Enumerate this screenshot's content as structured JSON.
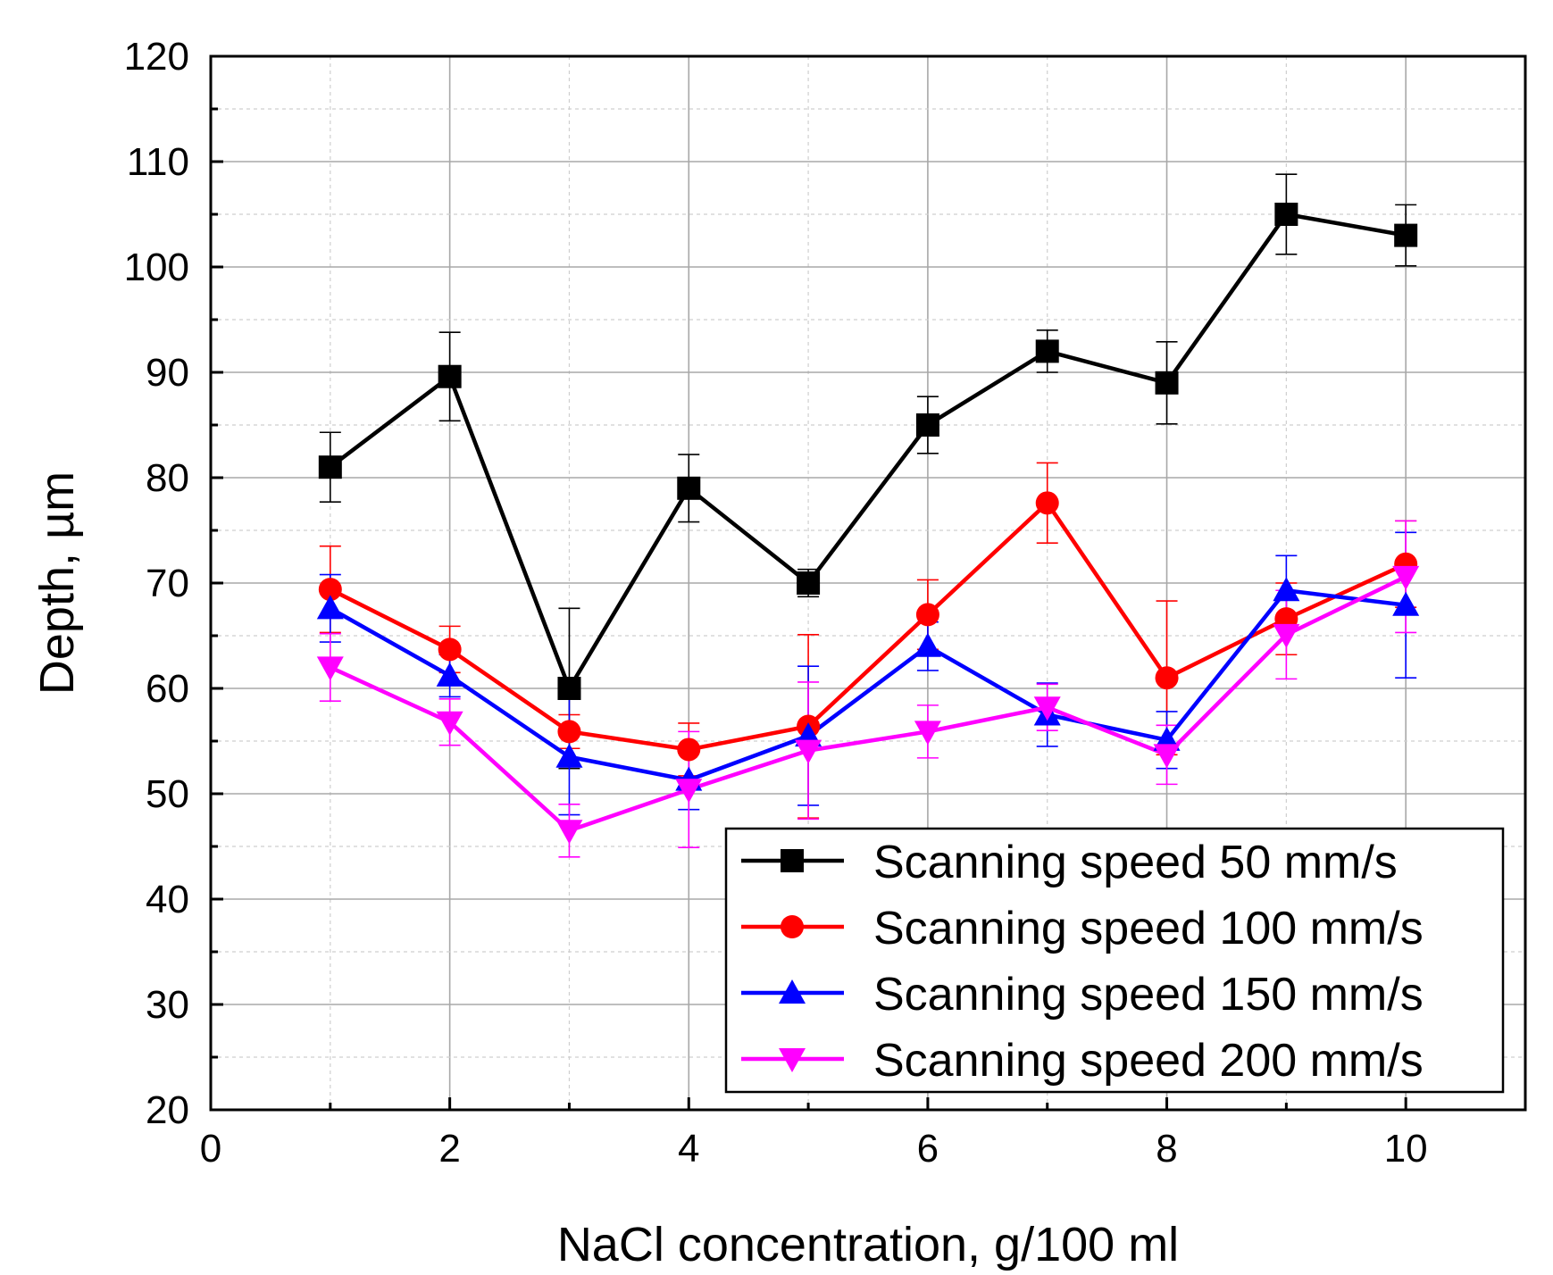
{
  "chart_data": {
    "type": "line",
    "title": "",
    "xlabel": "NaCl concentration, g/100 ml",
    "ylabel": "Depth, µm",
    "xlim": [
      0,
      11
    ],
    "ylim": [
      20,
      120
    ],
    "xticks": [
      0,
      2,
      4,
      6,
      8,
      10
    ],
    "xtick_labels": [
      "0",
      "2",
      "4",
      "6",
      "8",
      "10"
    ],
    "yticks": [
      20,
      30,
      40,
      50,
      60,
      70,
      80,
      90,
      100,
      110,
      120
    ],
    "ytick_labels": [
      "20",
      "30",
      "40",
      "50",
      "60",
      "70",
      "80",
      "90",
      "100",
      "110",
      "120"
    ],
    "grid": true,
    "legend_position": "bottom-right",
    "x": [
      1,
      2,
      3,
      4,
      5,
      6,
      7,
      8,
      9,
      10
    ],
    "series": [
      {
        "name": "Scanning speed 50 mm/s",
        "color": "#000000",
        "marker": "square",
        "values": [
          81,
          89.6,
          60,
          79,
          70,
          85,
          92,
          89,
          105,
          103
        ],
        "errors": [
          3.3,
          4.2,
          7.6,
          3.2,
          1.3,
          2.7,
          2.0,
          3.9,
          3.8,
          2.9
        ]
      },
      {
        "name": "Scanning speed 100 mm/s",
        "color": "#ff0000",
        "marker": "circle",
        "values": [
          69.4,
          63.7,
          55.9,
          54.2,
          56.4,
          67.0,
          77.6,
          61.0,
          66.6,
          71.8
        ],
        "errors": [
          4.1,
          2.2,
          1.6,
          2.5,
          8.7,
          3.3,
          3.8,
          7.3,
          3.4,
          4.1
        ]
      },
      {
        "name": "Scanning speed 150 mm/s",
        "color": "#0000ff",
        "marker": "triangle-up",
        "values": [
          67.6,
          61.2,
          53.5,
          51.3,
          55.5,
          64.0,
          57.5,
          55.1,
          69.3,
          67.9
        ],
        "errors": [
          3.2,
          2.0,
          5.5,
          2.8,
          6.6,
          2.3,
          3.0,
          2.7,
          3.3,
          6.9
        ]
      },
      {
        "name": "Scanning speed 200 mm/s",
        "color": "#ff00ff",
        "marker": "triangle-down",
        "values": [
          62.0,
          56.8,
          46.5,
          50.4,
          54.1,
          55.9,
          58.2,
          53.7,
          65.1,
          70.6
        ],
        "errors": [
          3.2,
          2.2,
          2.5,
          5.5,
          6.5,
          2.5,
          2.2,
          2.8,
          4.2,
          5.3
        ]
      }
    ]
  }
}
